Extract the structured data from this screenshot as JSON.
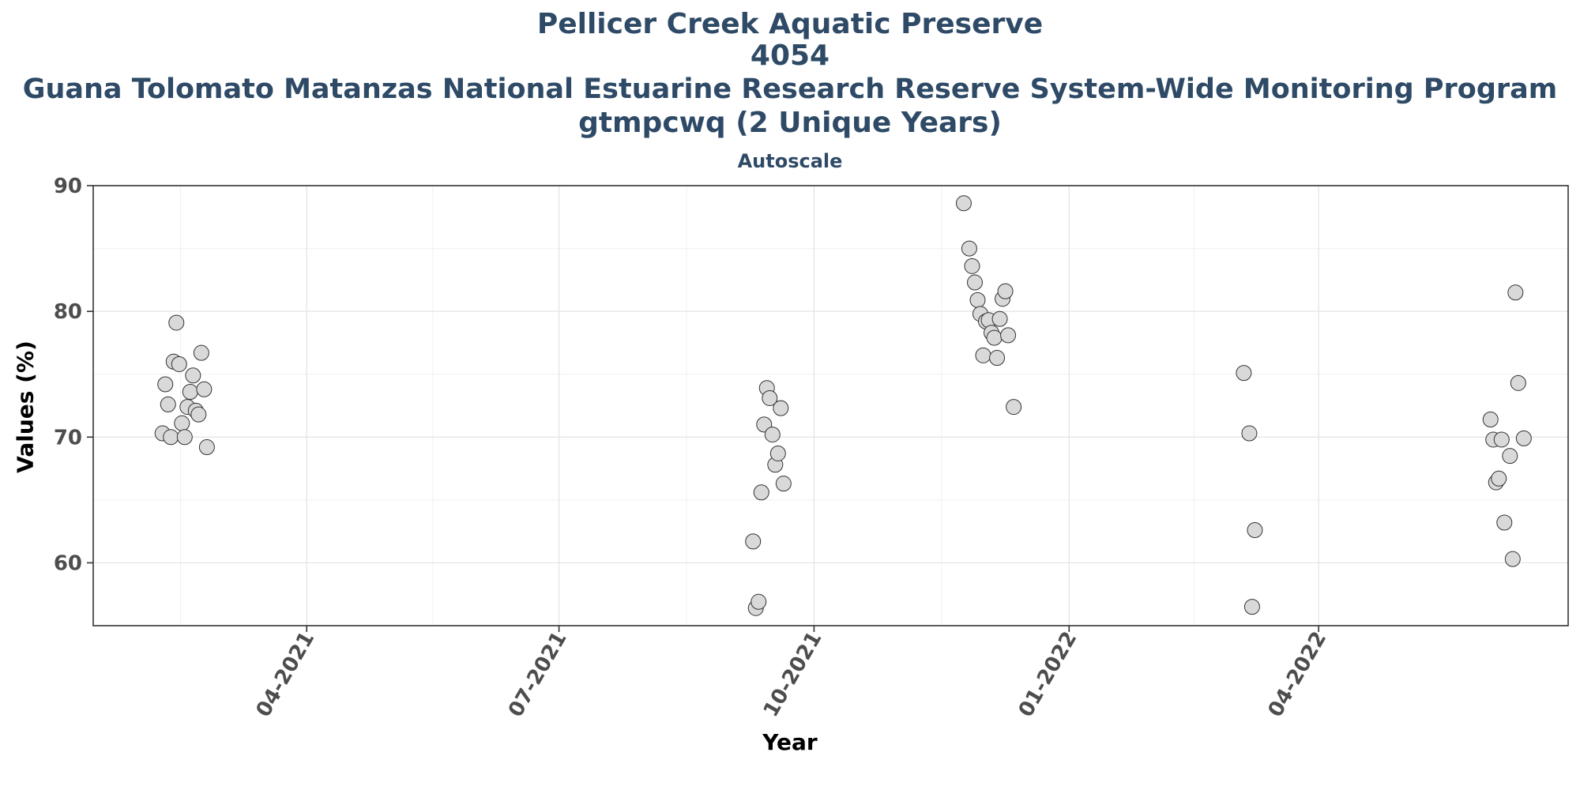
{
  "chart_data": {
    "type": "scatter",
    "title": [
      "Pellicer Creek Aquatic Preserve",
      "4054",
      "Guana Tolomato Matanzas National Estuarine Research Reserve System-Wide Monitoring Program",
      "gtmpcwq (2 Unique Years)"
    ],
    "subtitle": "Autoscale",
    "xlabel": "Year",
    "ylabel": "Values (%)",
    "x_axis_type": "date",
    "xlim": [
      "2021-01-14",
      "2022-06-30"
    ],
    "ylim": [
      55,
      90
    ],
    "grid": true,
    "y_ticks": [
      60,
      70,
      80,
      90
    ],
    "x_ticks": [
      {
        "date": "2021-04-01",
        "label": "04-2021"
      },
      {
        "date": "2021-07-01",
        "label": "07-2021"
      },
      {
        "date": "2021-10-01",
        "label": "10-2021"
      },
      {
        "date": "2022-01-01",
        "label": "01-2022"
      },
      {
        "date": "2022-04-01",
        "label": "04-2022"
      }
    ],
    "marker_color": "#d9d9d9",
    "marker_edge_color": "#333333",
    "points": [
      {
        "x": "2021-02-08",
        "y": 70.3
      },
      {
        "x": "2021-02-09",
        "y": 74.2
      },
      {
        "x": "2021-02-10",
        "y": 72.6
      },
      {
        "x": "2021-02-11",
        "y": 70.0
      },
      {
        "x": "2021-02-12",
        "y": 76.0
      },
      {
        "x": "2021-02-13",
        "y": 79.1
      },
      {
        "x": "2021-02-14",
        "y": 75.8
      },
      {
        "x": "2021-02-15",
        "y": 71.1
      },
      {
        "x": "2021-02-16",
        "y": 70.0
      },
      {
        "x": "2021-02-17",
        "y": 72.4
      },
      {
        "x": "2021-02-18",
        "y": 73.6
      },
      {
        "x": "2021-02-19",
        "y": 74.9
      },
      {
        "x": "2021-02-20",
        "y": 72.1
      },
      {
        "x": "2021-02-21",
        "y": 71.8
      },
      {
        "x": "2021-02-22",
        "y": 76.7
      },
      {
        "x": "2021-02-23",
        "y": 73.8
      },
      {
        "x": "2021-02-24",
        "y": 69.2
      },
      {
        "x": "2021-09-09",
        "y": 61.7
      },
      {
        "x": "2021-09-10",
        "y": 56.4
      },
      {
        "x": "2021-09-11",
        "y": 56.9
      },
      {
        "x": "2021-09-12",
        "y": 65.6
      },
      {
        "x": "2021-09-13",
        "y": 71.0
      },
      {
        "x": "2021-09-14",
        "y": 73.9
      },
      {
        "x": "2021-09-15",
        "y": 73.1
      },
      {
        "x": "2021-09-16",
        "y": 70.2
      },
      {
        "x": "2021-09-17",
        "y": 67.8
      },
      {
        "x": "2021-09-18",
        "y": 68.7
      },
      {
        "x": "2021-09-19",
        "y": 72.3
      },
      {
        "x": "2021-09-20",
        "y": 66.3
      },
      {
        "x": "2021-11-24",
        "y": 88.6
      },
      {
        "x": "2021-11-26",
        "y": 85.0
      },
      {
        "x": "2021-11-27",
        "y": 83.6
      },
      {
        "x": "2021-11-28",
        "y": 82.3
      },
      {
        "x": "2021-11-29",
        "y": 80.9
      },
      {
        "x": "2021-11-30",
        "y": 79.8
      },
      {
        "x": "2021-12-01",
        "y": 76.5
      },
      {
        "x": "2021-12-02",
        "y": 79.2
      },
      {
        "x": "2021-12-03",
        "y": 79.3
      },
      {
        "x": "2021-12-04",
        "y": 78.3
      },
      {
        "x": "2021-12-05",
        "y": 77.9
      },
      {
        "x": "2021-12-06",
        "y": 76.3
      },
      {
        "x": "2021-12-07",
        "y": 79.4
      },
      {
        "x": "2021-12-08",
        "y": 81.0
      },
      {
        "x": "2021-12-09",
        "y": 81.6
      },
      {
        "x": "2021-12-10",
        "y": 78.1
      },
      {
        "x": "2021-12-12",
        "y": 72.4
      },
      {
        "x": "2022-03-05",
        "y": 75.1
      },
      {
        "x": "2022-03-07",
        "y": 70.3
      },
      {
        "x": "2022-03-08",
        "y": 56.5
      },
      {
        "x": "2022-03-09",
        "y": 62.6
      },
      {
        "x": "2022-06-02",
        "y": 71.4
      },
      {
        "x": "2022-06-03",
        "y": 69.8
      },
      {
        "x": "2022-06-04",
        "y": 66.4
      },
      {
        "x": "2022-06-05",
        "y": 66.7
      },
      {
        "x": "2022-06-06",
        "y": 69.8
      },
      {
        "x": "2022-06-07",
        "y": 63.2
      },
      {
        "x": "2022-06-09",
        "y": 68.5
      },
      {
        "x": "2022-06-10",
        "y": 60.3
      },
      {
        "x": "2022-06-11",
        "y": 81.5
      },
      {
        "x": "2022-06-12",
        "y": 74.3
      },
      {
        "x": "2022-06-14",
        "y": 69.9
      }
    ]
  }
}
